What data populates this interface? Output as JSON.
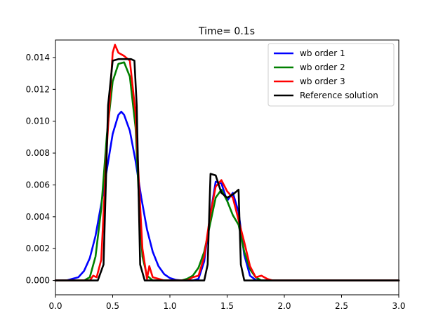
{
  "chart_data": {
    "type": "line",
    "title": "Time= 0.1s",
    "xlabel": "",
    "ylabel": "",
    "xlim": [
      0.0,
      3.0
    ],
    "ylim": [
      -0.0009,
      0.0151
    ],
    "grid": false,
    "legend_position": "top-right",
    "x_ticks": [
      {
        "value": 0.0,
        "label": "0.0"
      },
      {
        "value": 0.5,
        "label": "0.5"
      },
      {
        "value": 1.0,
        "label": "1.0"
      },
      {
        "value": 1.5,
        "label": "1.5"
      },
      {
        "value": 2.0,
        "label": "2.0"
      },
      {
        "value": 2.5,
        "label": "2.5"
      },
      {
        "value": 3.0,
        "label": "3.0"
      }
    ],
    "y_ticks": [
      {
        "value": 0.0,
        "label": "0.000"
      },
      {
        "value": 0.002,
        "label": "0.002"
      },
      {
        "value": 0.004,
        "label": "0.004"
      },
      {
        "value": 0.006,
        "label": "0.006"
      },
      {
        "value": 0.008,
        "label": "0.008"
      },
      {
        "value": 0.01,
        "label": "0.010"
      },
      {
        "value": 0.012,
        "label": "0.012"
      },
      {
        "value": 0.014,
        "label": "0.014"
      }
    ],
    "series": [
      {
        "name": "wb order 1",
        "color": "#0000ff",
        "points": [
          [
            0.0,
            0.0
          ],
          [
            0.1,
            1e-05
          ],
          [
            0.2,
            0.0002
          ],
          [
            0.25,
            0.0006
          ],
          [
            0.3,
            0.0014
          ],
          [
            0.35,
            0.0028
          ],
          [
            0.4,
            0.0048
          ],
          [
            0.45,
            0.007
          ],
          [
            0.5,
            0.0092
          ],
          [
            0.55,
            0.0104
          ],
          [
            0.575,
            0.0106
          ],
          [
            0.6,
            0.0104
          ],
          [
            0.65,
            0.0094
          ],
          [
            0.7,
            0.0075
          ],
          [
            0.75,
            0.0052
          ],
          [
            0.8,
            0.0032
          ],
          [
            0.85,
            0.0018
          ],
          [
            0.9,
            0.0009
          ],
          [
            0.95,
            0.0004
          ],
          [
            1.0,
            0.00015
          ],
          [
            1.05,
            4e-05
          ],
          [
            1.1,
            0.0
          ],
          [
            1.2,
            0.0
          ],
          [
            1.25,
            0.0001
          ],
          [
            1.3,
            0.0012
          ],
          [
            1.35,
            0.004
          ],
          [
            1.4,
            0.0062
          ],
          [
            1.45,
            0.0061
          ],
          [
            1.5,
            0.005
          ],
          [
            1.55,
            0.0055
          ],
          [
            1.6,
            0.0043
          ],
          [
            1.65,
            0.0016
          ],
          [
            1.7,
            0.0003
          ],
          [
            1.75,
            3e-05
          ],
          [
            1.8,
            0.0
          ],
          [
            3.0,
            0.0
          ]
        ]
      },
      {
        "name": "wb order 2",
        "color": "#008000",
        "points": [
          [
            0.0,
            0.0
          ],
          [
            0.25,
            0.0
          ],
          [
            0.3,
            0.0002
          ],
          [
            0.35,
            0.0015
          ],
          [
            0.4,
            0.0045
          ],
          [
            0.45,
            0.0092
          ],
          [
            0.5,
            0.0125
          ],
          [
            0.55,
            0.0136
          ],
          [
            0.6,
            0.0137
          ],
          [
            0.65,
            0.0128
          ],
          [
            0.7,
            0.0096
          ],
          [
            0.73,
            0.005
          ],
          [
            0.76,
            0.0015
          ],
          [
            0.8,
            0.0003
          ],
          [
            0.85,
            0.0
          ],
          [
            1.1,
            0.0
          ],
          [
            1.15,
            0.0001
          ],
          [
            1.2,
            0.0003
          ],
          [
            1.25,
            0.0008
          ],
          [
            1.3,
            0.0018
          ],
          [
            1.35,
            0.0035
          ],
          [
            1.4,
            0.0052
          ],
          [
            1.45,
            0.0057
          ],
          [
            1.5,
            0.005
          ],
          [
            1.55,
            0.0041
          ],
          [
            1.6,
            0.0035
          ],
          [
            1.65,
            0.0018
          ],
          [
            1.7,
            0.0007
          ],
          [
            1.75,
            0.0002
          ],
          [
            1.8,
            0.0
          ],
          [
            3.0,
            0.0
          ]
        ]
      },
      {
        "name": "wb order 3",
        "color": "#ff0000",
        "points": [
          [
            0.0,
            0.0
          ],
          [
            0.3,
            0.0
          ],
          [
            0.33,
            0.0003
          ],
          [
            0.36,
            0.0002
          ],
          [
            0.4,
            0.0013
          ],
          [
            0.45,
            0.0085
          ],
          [
            0.5,
            0.0143
          ],
          [
            0.52,
            0.0148
          ],
          [
            0.55,
            0.0143
          ],
          [
            0.6,
            0.0141
          ],
          [
            0.65,
            0.0138
          ],
          [
            0.7,
            0.0105
          ],
          [
            0.73,
            0.006
          ],
          [
            0.76,
            0.002
          ],
          [
            0.8,
            0.0001
          ],
          [
            0.82,
            0.0009
          ],
          [
            0.85,
            0.0002
          ],
          [
            0.9,
            0.0001
          ],
          [
            0.95,
            0.0
          ],
          [
            1.15,
            0.0
          ],
          [
            1.2,
            0.0002
          ],
          [
            1.25,
            0.0003
          ],
          [
            1.3,
            0.0015
          ],
          [
            1.35,
            0.004
          ],
          [
            1.4,
            0.0059
          ],
          [
            1.45,
            0.0063
          ],
          [
            1.5,
            0.0056
          ],
          [
            1.55,
            0.0052
          ],
          [
            1.6,
            0.0038
          ],
          [
            1.65,
            0.0024
          ],
          [
            1.7,
            0.0009
          ],
          [
            1.75,
            0.0002
          ],
          [
            1.8,
            0.0003
          ],
          [
            1.85,
            0.0001
          ],
          [
            1.9,
            0.0
          ],
          [
            3.0,
            0.0
          ]
        ]
      },
      {
        "name": "Reference solution",
        "color": "#000000",
        "points": [
          [
            0.0,
            0.0
          ],
          [
            0.37,
            0.0
          ],
          [
            0.42,
            0.001
          ],
          [
            0.46,
            0.011
          ],
          [
            0.5,
            0.0138
          ],
          [
            0.55,
            0.0139
          ],
          [
            0.6,
            0.0139
          ],
          [
            0.66,
            0.0139
          ],
          [
            0.69,
            0.0138
          ],
          [
            0.71,
            0.011
          ],
          [
            0.74,
            0.001
          ],
          [
            0.78,
            0.0
          ],
          [
            1.3,
            0.0
          ],
          [
            1.33,
            0.001
          ],
          [
            1.355,
            0.0067
          ],
          [
            1.4,
            0.0066
          ],
          [
            1.45,
            0.0055
          ],
          [
            1.5,
            0.0052
          ],
          [
            1.55,
            0.0054
          ],
          [
            1.6,
            0.0057
          ],
          [
            1.62,
            0.001
          ],
          [
            1.65,
            0.0
          ],
          [
            3.0,
            0.0
          ]
        ]
      }
    ]
  }
}
